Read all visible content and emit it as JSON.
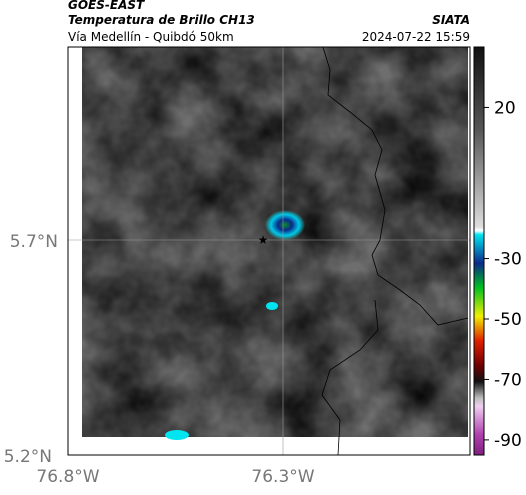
{
  "header": {
    "title": "GOES-EAST",
    "subtitle": "Temperatura de Brillo CH13",
    "source": "SIATA",
    "location": "Vía Medellín - Quibdó 50km",
    "datetime": "2024-07-22 15:59"
  },
  "map": {
    "lat_labels": [
      "5.7°N",
      "5.2°N"
    ],
    "lon_labels": [
      "76.8°W",
      "76.3°W"
    ]
  },
  "colorbar": {
    "lim": [
      -95,
      40
    ],
    "ticks": [
      20,
      -30,
      -50,
      -70,
      -90
    ]
  }
}
